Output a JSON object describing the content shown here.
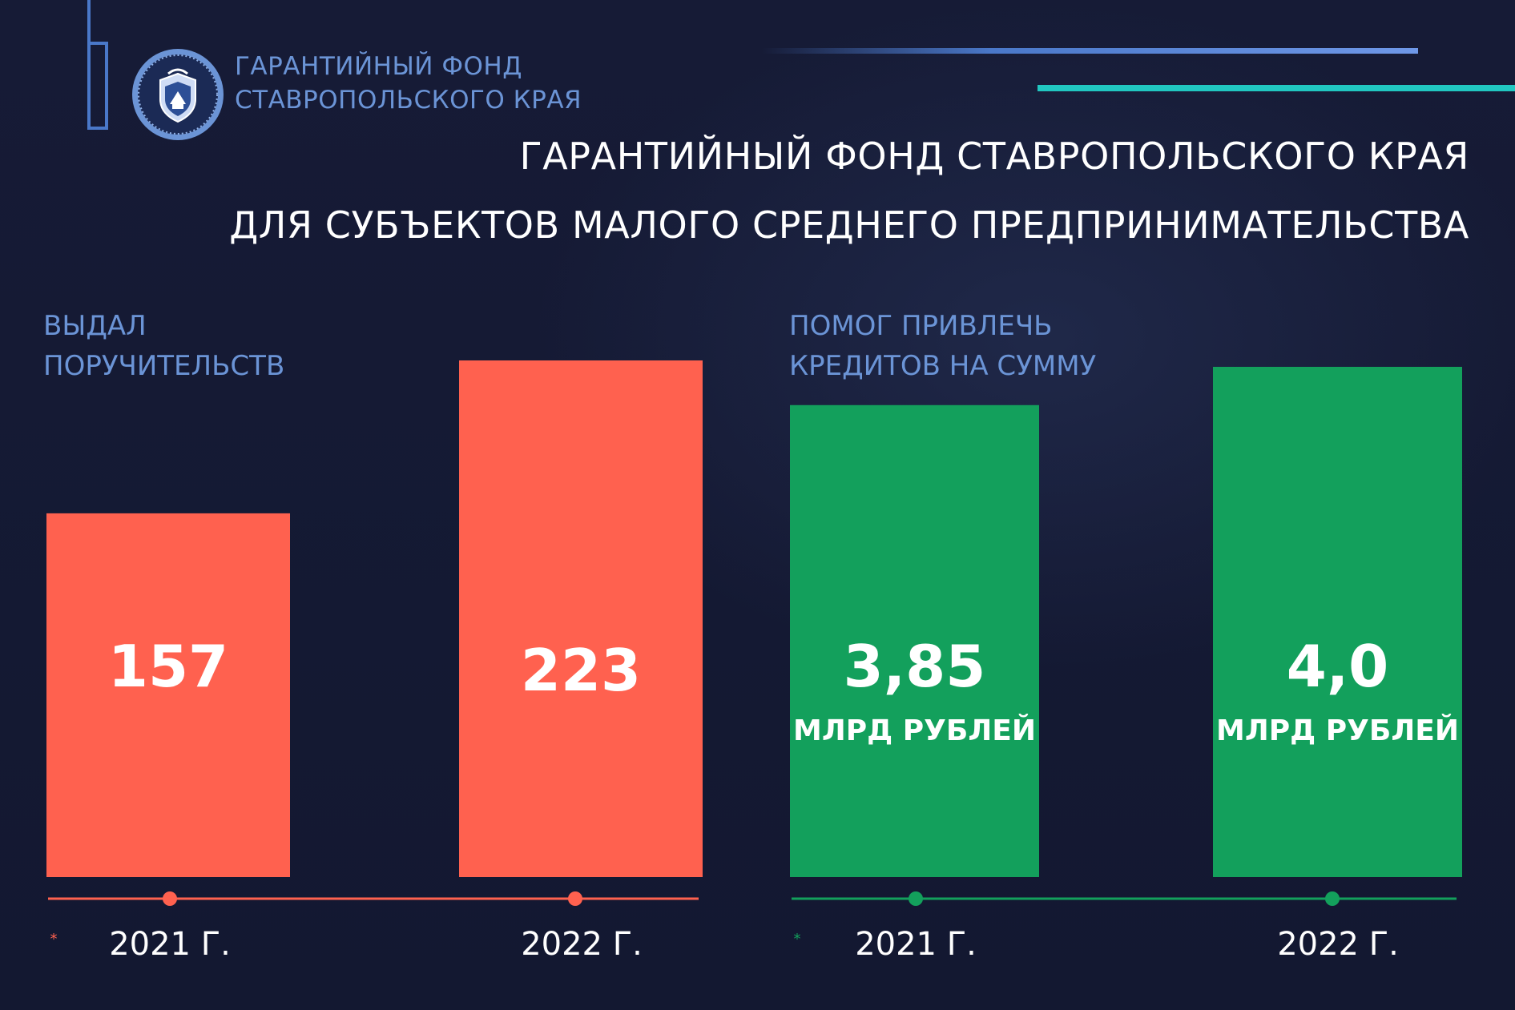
{
  "brand": {
    "line1": "ГАРАНТИЙНЫЙ ФОНД",
    "line2": "СТАВРОПОЛЬСКОГО КРАЯ",
    "logo": "coat-of-arms-icon"
  },
  "title": {
    "line1": "ГАРАНТИЙНЫЙ ФОНД СТАВРОПОЛЬСКОГО КРАЯ",
    "line2": "ДЛЯ СУБЪЕКТОВ МАЛОГО СРЕДНЕГО ПРЕДПРИНИМАТЕЛЬСТВА"
  },
  "colors": {
    "background": "#151a33",
    "accent_blue": "#6b94d6",
    "teal": "#21c7c1",
    "red": "#ff614f",
    "green": "#13a05c"
  },
  "chart_data": [
    {
      "type": "bar",
      "title": "ВЫДАЛ ПОРУЧИТЕЛЬСТВ",
      "title_lines": [
        "ВЫДАЛ",
        "ПОРУЧИТЕЛЬСТВ"
      ],
      "categories": [
        "2021 Г.",
        "2022 Г."
      ],
      "values": [
        157,
        223
      ],
      "value_labels": [
        "157",
        "223"
      ],
      "unit_label": "",
      "color": "#ff614f",
      "footnote_marker": "*",
      "axis_line": true,
      "grid": false,
      "legend": "none"
    },
    {
      "type": "bar",
      "title": "ПОМОГ ПРИВЛЕЧЬ КРЕДИТОВ НА СУММУ",
      "title_lines": [
        "ПОМОГ ПРИВЛЕЧЬ",
        "КРЕДИТОВ НА СУММУ"
      ],
      "categories": [
        "2021 Г.",
        "2022 Г."
      ],
      "values": [
        3.85,
        4.0
      ],
      "value_labels": [
        "3,85",
        "4,0"
      ],
      "unit_label": "МЛРД РУБЛЕЙ",
      "color": "#13a05c",
      "footnote_marker": "*",
      "axis_line": true,
      "grid": false,
      "legend": "none"
    }
  ]
}
